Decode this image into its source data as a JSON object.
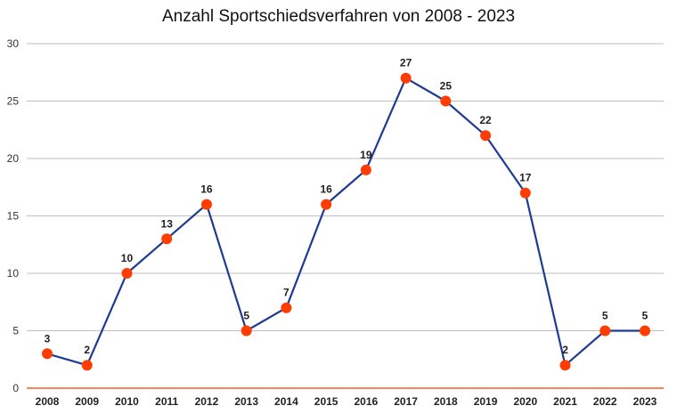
{
  "chart_data": {
    "type": "line",
    "title": "Anzahl Sportschiedsverfahren von 2008 - 2023",
    "xlabel": "",
    "ylabel": "",
    "categories": [
      "2008",
      "2009",
      "2010",
      "2011",
      "2012",
      "2013",
      "2014",
      "2015",
      "2016",
      "2017",
      "2018",
      "2019",
      "2020",
      "2021",
      "2022",
      "2023"
    ],
    "series": [
      {
        "values": [
          3,
          2,
          10,
          13,
          16,
          5,
          7,
          16,
          19,
          27,
          25,
          22,
          17,
          2,
          5,
          5
        ]
      }
    ],
    "ylim": [
      0,
      30
    ],
    "yticks": [
      0,
      5,
      10,
      15,
      20,
      25,
      30
    ],
    "grid": true,
    "data_labels": true,
    "colors": {
      "line": "#1f3a93",
      "marker": "#ff3d00",
      "baseline": "#ff5a1f",
      "grid": "#bfbfbf"
    }
  }
}
